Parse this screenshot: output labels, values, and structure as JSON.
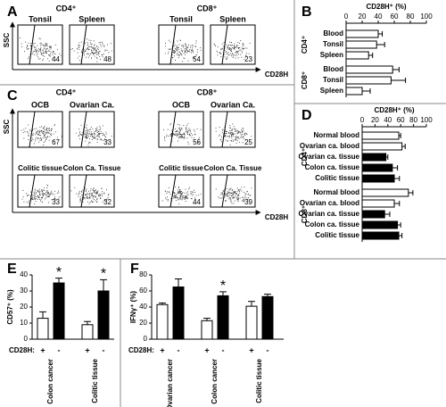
{
  "chart_data": [
    {
      "type": "flow",
      "panel": "A",
      "y_label": "SSC",
      "x_label": "CD28H",
      "groups": [
        {
          "name": "CD4⁺",
          "plots": [
            {
              "label": "Tonsil",
              "value": 44
            },
            {
              "label": "Spleen",
              "value": 48
            }
          ]
        },
        {
          "name": "CD8⁺",
          "plots": [
            {
              "label": "Tonsil",
              "value": 54
            },
            {
              "label": "Spleen",
              "value": 23
            }
          ]
        }
      ]
    },
    {
      "type": "hbar",
      "panel": "B",
      "title": "CD28H⁺ (%)",
      "xlim": [
        0,
        100
      ],
      "xticks": [
        0,
        20,
        40,
        60,
        80,
        100
      ],
      "groups": [
        {
          "name": "CD4⁺",
          "categories": [
            "Blood",
            "Tonsil",
            "Spleen"
          ],
          "values": [
            40,
            38,
            28
          ],
          "errors": [
            5,
            10,
            5
          ],
          "colors": [
            "#ffffff",
            "#ffffff",
            "#ffffff"
          ]
        },
        {
          "name": "CD8⁺",
          "categories": [
            "Blood",
            "Tonsil",
            "Spleen"
          ],
          "values": [
            58,
            56,
            20
          ],
          "errors": [
            8,
            18,
            10
          ],
          "colors": [
            "#ffffff",
            "#ffffff",
            "#ffffff"
          ]
        }
      ]
    },
    {
      "type": "flow",
      "panel": "C",
      "y_label": "SSC",
      "x_label": "CD28H",
      "groups": [
        {
          "name": "CD4⁺",
          "plots": [
            {
              "label": "OCB",
              "value": 67
            },
            {
              "label": "Ovarian Ca.",
              "value": 33
            },
            {
              "label": "Colitic tissue",
              "value": 33
            },
            {
              "label": "Colon Ca. Tissue",
              "value": 32
            }
          ]
        },
        {
          "name": "CD8⁺",
          "plots": [
            {
              "label": "OCB",
              "value": 56
            },
            {
              "label": "Ovarian Ca.",
              "value": 25
            },
            {
              "label": "Colitic tissue",
              "value": 44
            },
            {
              "label": "Colon Ca. Tissue",
              "value": 39
            }
          ]
        }
      ]
    },
    {
      "type": "hbar",
      "panel": "D",
      "title": "CD28H⁺ (%)",
      "xlim": [
        0,
        100
      ],
      "xticks": [
        0,
        20,
        40,
        60,
        80,
        100
      ],
      "groups": [
        {
          "name": "CD4⁺",
          "categories": [
            "Normal blood",
            "Ovarian ca. blood",
            "Ovarian ca. tissue",
            "Colon ca. tissue",
            "Colitic tissue"
          ],
          "values": [
            57,
            62,
            37,
            47,
            50
          ],
          "errors": [
            3,
            5,
            3,
            8,
            8
          ],
          "colors": [
            "#ffffff",
            "#ffffff",
            "#000000",
            "#000000",
            "#000000"
          ]
        },
        {
          "name": "CD8⁺",
          "categories": [
            "Normal blood",
            "Ovarian ca. blood",
            "Ovarian ca. tissue",
            "Colon ca. tissue",
            "Colitic tissue"
          ],
          "values": [
            72,
            50,
            35,
            55,
            57
          ],
          "errors": [
            7,
            8,
            8,
            5,
            5
          ],
          "colors": [
            "#ffffff",
            "#ffffff",
            "#000000",
            "#000000",
            "#000000"
          ]
        }
      ]
    },
    {
      "type": "bar",
      "panel": "E",
      "ylabel": "CD57⁺ (%)",
      "ylim": [
        0,
        40
      ],
      "yticks": [
        0,
        10,
        20,
        30,
        40
      ],
      "legend_label": "CD28H:",
      "categories": [
        "Colon cancer",
        "Colitic tissue"
      ],
      "series": [
        {
          "name": "+",
          "color": "#ffffff",
          "values": [
            13,
            9
          ],
          "errors": [
            4,
            2
          ]
        },
        {
          "name": "-",
          "color": "#000000",
          "values": [
            35,
            30
          ],
          "errors": [
            3,
            7
          ]
        }
      ],
      "annotations": [
        {
          "text": "*",
          "series": 1,
          "category": 0
        },
        {
          "text": "*",
          "series": 1,
          "category": 1
        }
      ]
    },
    {
      "type": "bar",
      "panel": "F",
      "ylabel": "IFNγ⁺ (%)",
      "ylim": [
        0,
        80
      ],
      "yticks": [
        0,
        20,
        40,
        60,
        80
      ],
      "legend_label": "CD28H:",
      "categories": [
        "Ovarian cancer",
        "Colon cancer",
        "Colitic tissue"
      ],
      "series": [
        {
          "name": "+",
          "color": "#ffffff",
          "values": [
            43,
            23,
            41
          ],
          "errors": [
            2,
            3,
            6
          ]
        },
        {
          "name": "-",
          "color": "#000000",
          "values": [
            65,
            54,
            53
          ],
          "errors": [
            10,
            5,
            3
          ]
        }
      ],
      "annotations": [
        {
          "text": "*",
          "series": 1,
          "category": 1
        }
      ]
    }
  ]
}
